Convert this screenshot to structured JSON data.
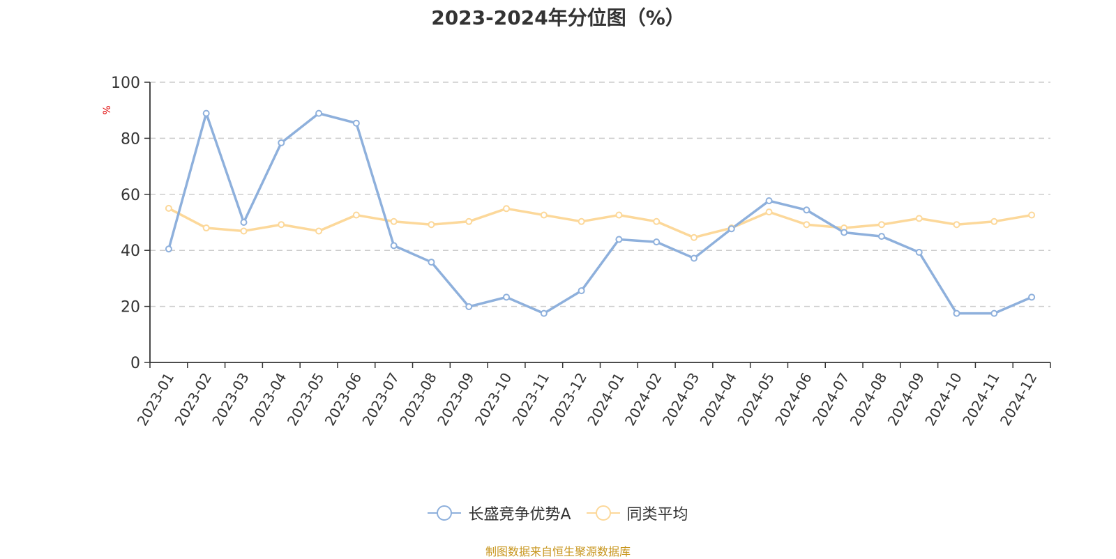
{
  "title": "2023-2024年分位图（%）",
  "y_unit_label": "%",
  "source": "制图数据来自恒生聚源数据库",
  "legend": [
    {
      "name": "长盛竞争优势A",
      "color": "#8eb0dc"
    },
    {
      "name": "同类平均",
      "color": "#fcd89a"
    }
  ],
  "colors": {
    "axis": "#333333",
    "grid": "#cccccc",
    "unit": "#e00000",
    "source": "#c8961e"
  },
  "chart_data": {
    "type": "line",
    "title": "2023-2024年分位图（%）",
    "xlabel": "",
    "ylabel": "%",
    "ylim": [
      0,
      100
    ],
    "yticks": [
      0,
      20,
      40,
      60,
      80,
      100
    ],
    "grid": "horizontal dashed",
    "legend_position": "bottom",
    "categories": [
      "2023-01",
      "2023-02",
      "2023-03",
      "2023-04",
      "2023-05",
      "2023-06",
      "2023-07",
      "2023-08",
      "2023-09",
      "2023-10",
      "2023-11",
      "2023-12",
      "2024-01",
      "2024-02",
      "2024-03",
      "2024-04",
      "2024-05",
      "2024-06",
      "2024-07",
      "2024-08",
      "2024-09",
      "2024-10",
      "2024-11",
      "2024-12"
    ],
    "series": [
      {
        "name": "长盛竞争优势A",
        "color": "#8eb0dc",
        "values": [
          40.5,
          88.9,
          50.0,
          78.4,
          88.9,
          85.4,
          41.7,
          35.8,
          19.9,
          23.3,
          17.5,
          25.6,
          43.9,
          43.0,
          37.2,
          47.7,
          57.7,
          54.4,
          46.4,
          45.0,
          39.3,
          17.5,
          17.5,
          23.3
        ]
      },
      {
        "name": "同类平均",
        "color": "#fcd89a",
        "values": [
          55.0,
          48.0,
          46.9,
          49.2,
          46.9,
          52.6,
          50.3,
          49.2,
          50.3,
          54.9,
          52.6,
          50.3,
          52.6,
          50.3,
          44.6,
          48.0,
          53.7,
          49.2,
          48.0,
          49.2,
          51.4,
          49.2,
          50.3,
          52.6
        ]
      }
    ]
  }
}
